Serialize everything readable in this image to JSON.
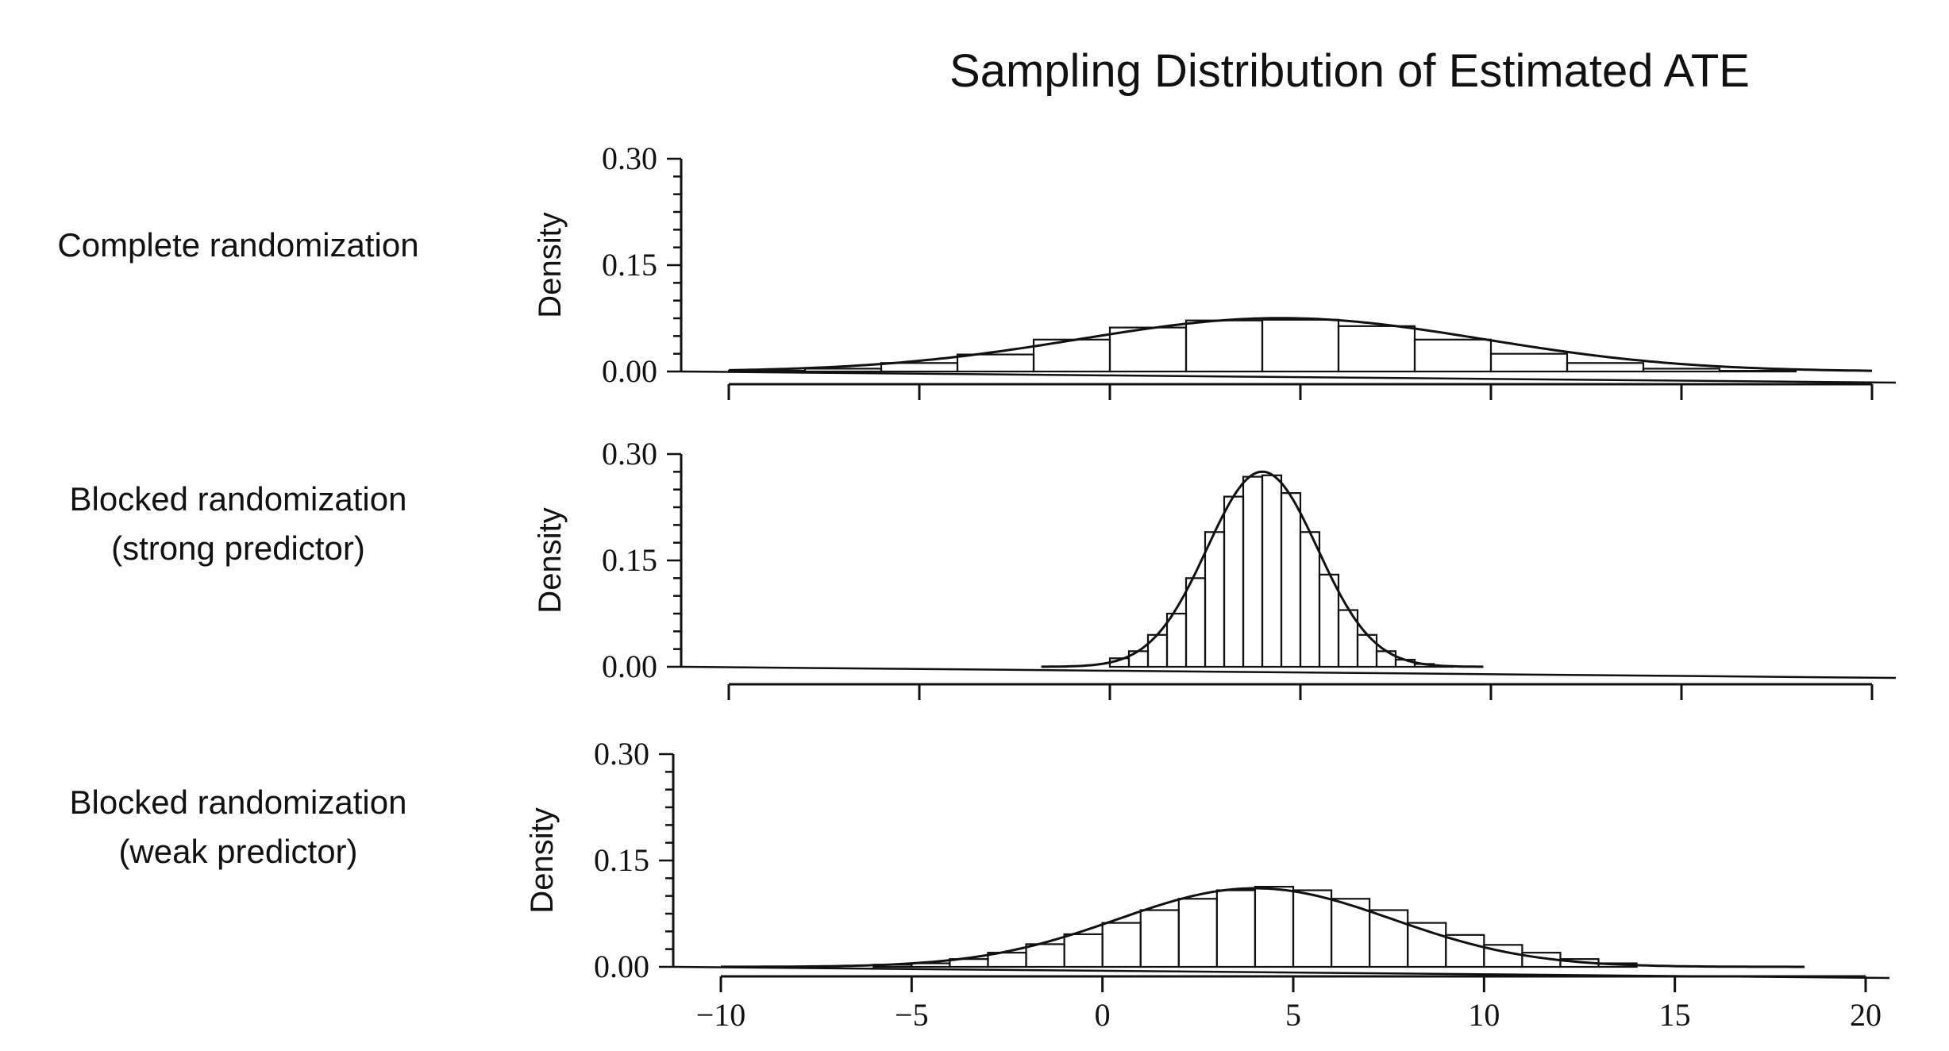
{
  "title": "Sampling Distribution of Estimated ATE",
  "chart_data": [
    {
      "type": "bar",
      "row_label": [
        "Complete randomization"
      ],
      "ylabel": "Density",
      "xlabel": "",
      "yticks": [
        "0.30",
        "0.15",
        "0.00"
      ],
      "ylim": [
        0,
        0.3
      ],
      "xlim": [
        -10,
        20
      ],
      "xticks": [],
      "bin_edges": [
        -10,
        -8,
        -6,
        -4,
        -2,
        0,
        2,
        4,
        6,
        8,
        10,
        12,
        14,
        16,
        18,
        20
      ],
      "values": [
        0.001,
        0.004,
        0.012,
        0.024,
        0.045,
        0.062,
        0.072,
        0.073,
        0.064,
        0.045,
        0.025,
        0.012,
        0.004,
        0.001,
        0.0
      ],
      "curve": {
        "mean": 4.5,
        "sd": 5.3
      }
    },
    {
      "type": "bar",
      "row_label": [
        "Blocked randomization",
        "(strong predictor)"
      ],
      "ylabel": "Density",
      "xlabel": "",
      "yticks": [
        "0.30",
        "0.15",
        "0.00"
      ],
      "ylim": [
        0,
        0.3
      ],
      "xlim": [
        -10,
        20
      ],
      "xticks": [],
      "bin_edges": [
        0,
        0.5,
        1,
        1.5,
        2,
        2.5,
        3,
        3.5,
        4,
        4.5,
        5,
        5.5,
        6,
        6.5,
        7,
        7.5,
        8,
        8.5,
        9
      ],
      "values": [
        0.012,
        0.022,
        0.045,
        0.075,
        0.125,
        0.19,
        0.24,
        0.268,
        0.27,
        0.245,
        0.19,
        0.13,
        0.08,
        0.045,
        0.022,
        0.01,
        0.004,
        0.001
      ],
      "curve": {
        "mean": 4.0,
        "sd": 1.45
      }
    },
    {
      "type": "bar",
      "row_label": [
        "Blocked randomization",
        "(weak predictor)"
      ],
      "ylabel": "Density",
      "xlabel": "",
      "yticks": [
        "0.30",
        "0.15",
        "0.00"
      ],
      "ylim": [
        0,
        0.3
      ],
      "xlim": [
        -10,
        20
      ],
      "xticks": [
        "−10",
        "−5",
        "0",
        "5",
        "10",
        "15",
        "20"
      ],
      "bin_edges": [
        -6,
        -5,
        -4,
        -3,
        -2,
        -1,
        0,
        1,
        2,
        3,
        4,
        5,
        6,
        7,
        8,
        9,
        10,
        11,
        12,
        13,
        14
      ],
      "values": [
        0.003,
        0.005,
        0.011,
        0.02,
        0.032,
        0.046,
        0.062,
        0.08,
        0.096,
        0.108,
        0.113,
        0.108,
        0.096,
        0.08,
        0.062,
        0.045,
        0.031,
        0.02,
        0.011,
        0.005
      ],
      "curve": {
        "mean": 4.0,
        "sd": 3.6
      }
    }
  ]
}
